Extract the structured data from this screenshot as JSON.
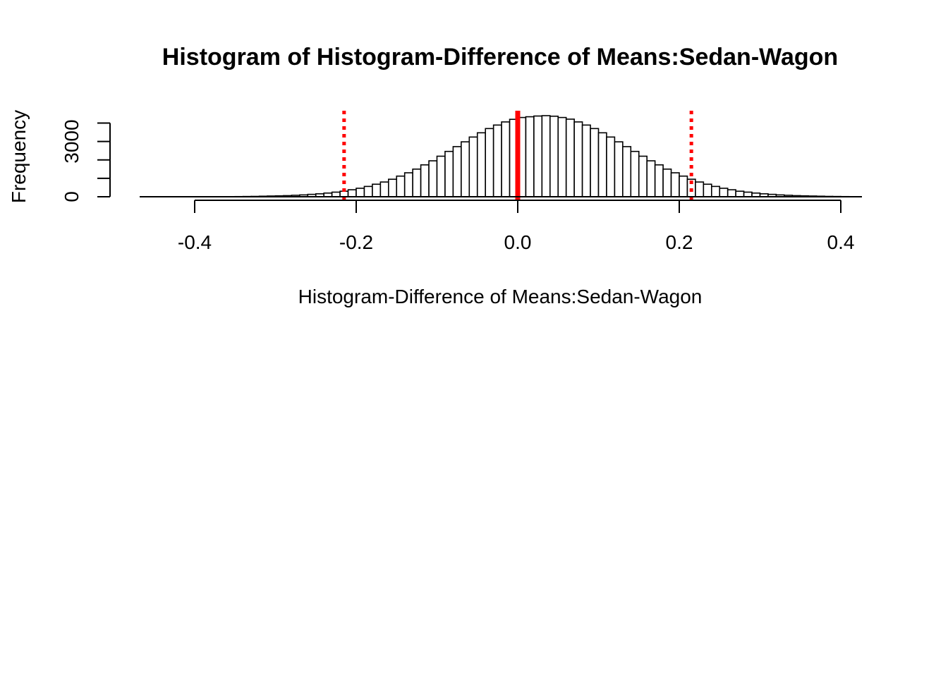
{
  "chart_data": {
    "type": "bar",
    "title": "Histogram of  Histogram-Difference of Means:Sedan-Wagon",
    "xlabel": "Histogram-Difference of Means:Sedan-Wagon",
    "ylabel": "Frequency",
    "xlim": [
      -0.46,
      0.42
    ],
    "ylim": [
      0,
      4500
    ],
    "x_ticks": [
      -0.4,
      -0.2,
      0.0,
      0.2,
      0.4
    ],
    "x_tick_labels": [
      "-0.4",
      "-0.2",
      "0.0",
      "0.2",
      "0.4"
    ],
    "y_ticks": [
      0,
      1000,
      2000,
      3000,
      4000
    ],
    "y_tick_labels": [
      "0",
      "",
      "",
      "3000",
      ""
    ],
    "bin_width": 0.01,
    "bin_start": -0.46,
    "values": [
      0,
      0,
      0,
      0,
      0,
      0,
      0,
      0,
      0,
      0,
      5,
      10,
      15,
      20,
      30,
      40,
      50,
      60,
      80,
      100,
      130,
      160,
      200,
      250,
      300,
      380,
      460,
      560,
      680,
      800,
      950,
      1120,
      1300,
      1500,
      1730,
      1950,
      2200,
      2460,
      2720,
      2980,
      3240,
      3470,
      3700,
      3890,
      4060,
      4200,
      4300,
      4340,
      4380,
      4400,
      4370,
      4300,
      4210,
      4060,
      3890,
      3700,
      3470,
      3240,
      2980,
      2720,
      2460,
      2200,
      1950,
      1730,
      1500,
      1300,
      1120,
      950,
      800,
      680,
      560,
      460,
      380,
      300,
      250,
      200,
      160,
      130,
      100,
      80,
      60,
      50,
      40,
      30,
      20,
      15,
      10,
      5
    ],
    "reference_lines": [
      {
        "x": 0.0,
        "style": "solid",
        "color": "#ff0000"
      },
      {
        "x": -0.215,
        "style": "dotted",
        "color": "#ff0000"
      },
      {
        "x": 0.215,
        "style": "dotted",
        "color": "#ff0000"
      }
    ],
    "grid": false,
    "bar_fill": "#ffffff",
    "bar_stroke": "#000000"
  }
}
